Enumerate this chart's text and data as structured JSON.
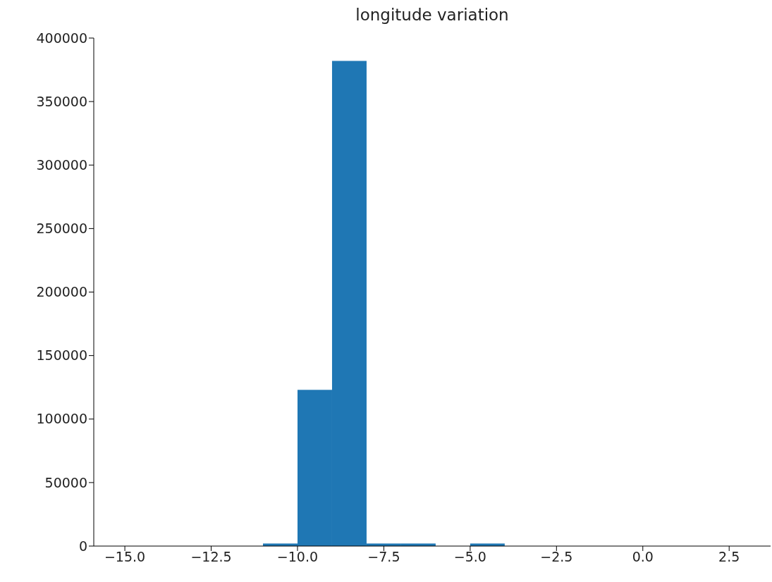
{
  "chart_data": {
    "type": "histogram",
    "title": "longitude variation",
    "color": "#1f77b4",
    "bins": [
      -15,
      -14,
      -13,
      -12,
      -11,
      -10,
      -9,
      -8,
      -7,
      -6,
      -5,
      -4,
      -3,
      -2,
      -1,
      0,
      1,
      2,
      3
    ],
    "values": [
      0,
      0,
      0,
      0,
      2000,
      123000,
      382000,
      2000,
      2000,
      0,
      2000,
      0,
      0,
      0,
      0,
      0,
      0,
      0
    ],
    "xlim": [
      -15.9,
      3.7
    ],
    "xticks": [
      {
        "value": -15,
        "label": "−15.0"
      },
      {
        "value": -12.5,
        "label": "−12.5"
      },
      {
        "value": -10,
        "label": "−10.0"
      },
      {
        "value": -7.5,
        "label": "−7.5"
      },
      {
        "value": -5,
        "label": "−5.0"
      },
      {
        "value": -2.5,
        "label": "−2.5"
      },
      {
        "value": 0,
        "label": "0.0"
      },
      {
        "value": 2.5,
        "label": "2.5"
      }
    ],
    "ylim": [
      0,
      400000
    ],
    "yticks": [
      0,
      50000,
      100000,
      150000,
      200000,
      250000,
      300000,
      350000,
      400000
    ],
    "grid": false
  }
}
